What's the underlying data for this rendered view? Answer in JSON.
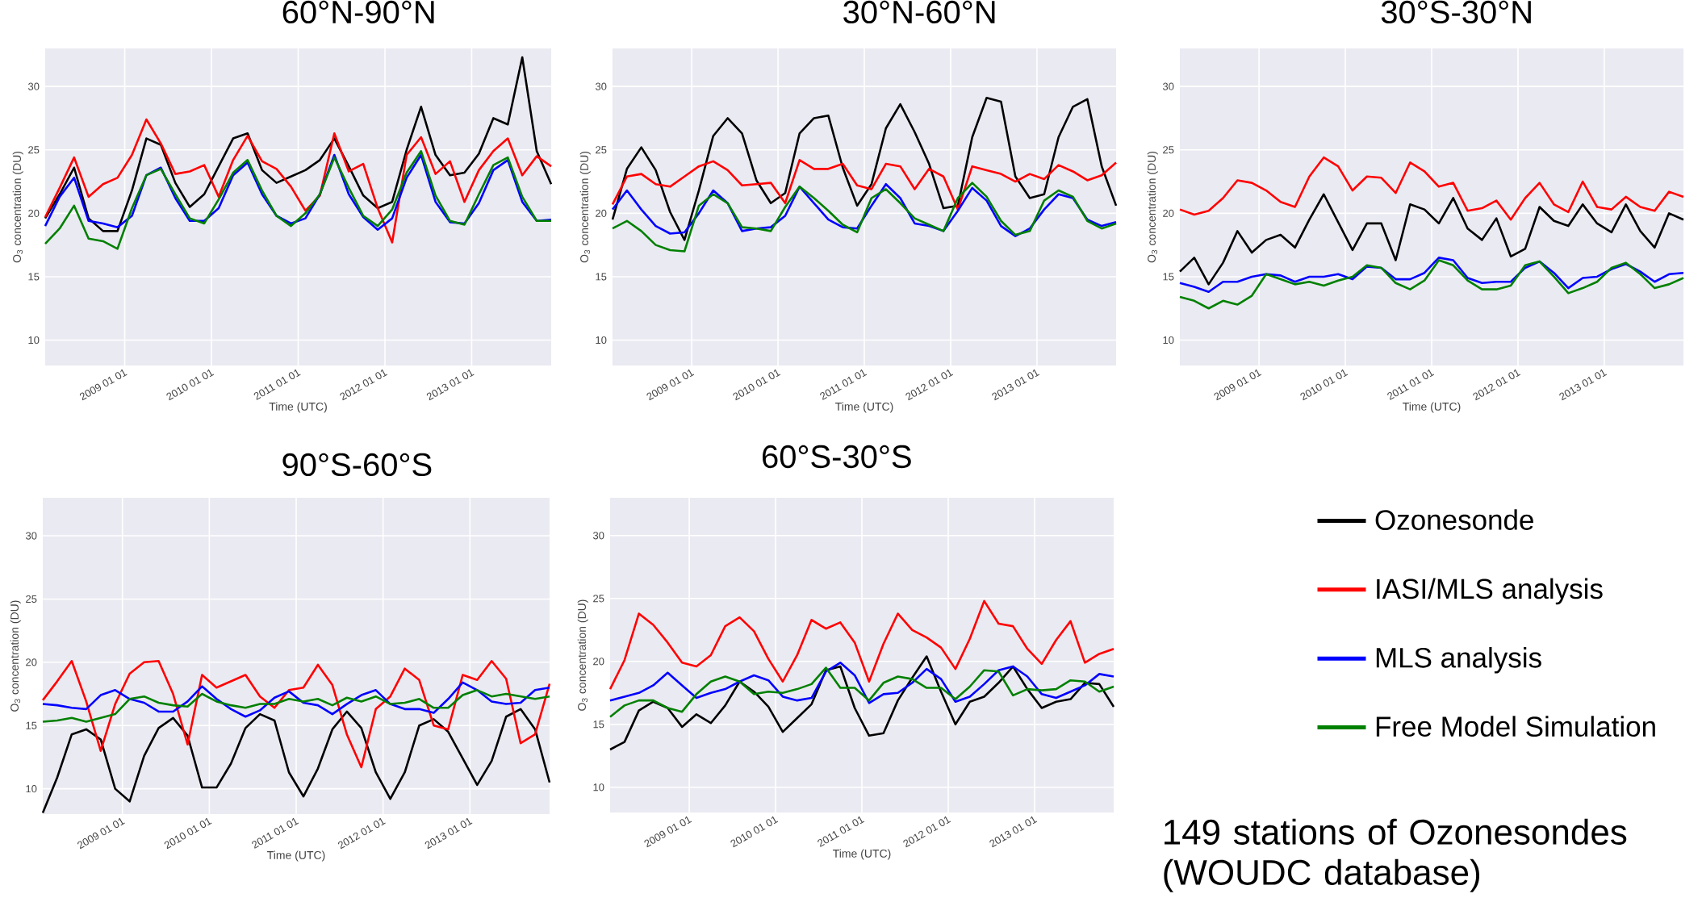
{
  "chart_data": [
    {
      "type": "line",
      "title": "60°N-90°N",
      "xlabel": "Time (UTC)",
      "ylabel": "O$_{3}$ concentration (DU)",
      "grid": true,
      "x": [
        "2008-02",
        "2008-04",
        "2008-06",
        "2008-08",
        "2008-10",
        "2008-12",
        "2009-02",
        "2009-04",
        "2009-06",
        "2009-08",
        "2009-10",
        "2009-12",
        "2010-02",
        "2010-04",
        "2010-06",
        "2010-08",
        "2010-10",
        "2010-12",
        "2011-02",
        "2011-04",
        "2011-06",
        "2011-08",
        "2011-10",
        "2011-12",
        "2012-02",
        "2012-04",
        "2012-06",
        "2012-08",
        "2012-10",
        "2012-12",
        "2013-02",
        "2013-04",
        "2013-06",
        "2013-08",
        "2013-10",
        "2013-12"
      ],
      "xlim": [
        "2008-02",
        "2013-12"
      ],
      "ylim": [
        8,
        33
      ],
      "yticks": [
        10,
        15,
        20,
        25,
        30
      ],
      "xticks": [
        {
          "value": "2009-01-01",
          "label": "2009 01 01"
        },
        {
          "value": "2010-01-01",
          "label": "2010 01 01"
        },
        {
          "value": "2011-01-01",
          "label": "2011 01 01"
        },
        {
          "value": "2012-01-01",
          "label": "2012 01 01"
        },
        {
          "value": "2013-01-01",
          "label": "2013 01 01"
        }
      ],
      "series": [
        {
          "color": "#000000",
          "values": [
            19.6,
            21.5,
            23.6,
            19.6,
            18.6,
            18.6,
            21.8,
            25.9,
            25.4,
            22.4,
            20.5,
            21.5,
            23.7,
            25.9,
            26.3,
            23.4,
            22.4,
            22.9,
            23.4,
            24.2,
            25.9,
            23.7,
            21.4,
            20.4,
            20.9,
            25.0,
            28.4,
            24.6,
            23.0,
            23.2,
            24.7,
            27.5,
            27.0,
            32.3,
            24.9,
            22.3
          ]
        },
        {
          "color": "#ff0000",
          "values": [
            19.7,
            22.0,
            24.4,
            21.3,
            22.3,
            22.8,
            24.6,
            27.4,
            25.5,
            23.1,
            23.3,
            23.8,
            21.3,
            24.2,
            26.1,
            24.1,
            23.5,
            22.1,
            20.2,
            21.4,
            26.3,
            23.3,
            23.9,
            20.4,
            17.7,
            24.6,
            26.0,
            23.1,
            24.1,
            20.9,
            23.4,
            24.9,
            25.9,
            23.0,
            24.5,
            23.7
          ]
        },
        {
          "color": "#0000ff",
          "values": [
            19.0,
            21.3,
            22.8,
            19.4,
            19.2,
            18.9,
            19.8,
            23.0,
            23.6,
            21.2,
            19.4,
            19.4,
            20.4,
            23.0,
            24.0,
            21.5,
            19.8,
            19.2,
            19.6,
            21.5,
            24.6,
            21.5,
            19.7,
            18.7,
            19.6,
            22.8,
            24.6,
            20.9,
            19.3,
            19.2,
            20.8,
            23.4,
            24.2,
            20.9,
            19.4,
            19.5
          ]
        },
        {
          "color": "#008000",
          "values": [
            17.6,
            18.8,
            20.6,
            18.0,
            17.8,
            17.2,
            20.4,
            23.0,
            23.5,
            21.5,
            19.6,
            19.2,
            21.1,
            23.2,
            24.2,
            21.8,
            19.8,
            19.0,
            20.0,
            21.5,
            24.4,
            22.0,
            19.8,
            19.0,
            20.3,
            23.2,
            24.9,
            21.4,
            19.4,
            19.1,
            21.5,
            23.8,
            24.4,
            21.3,
            19.4,
            19.4
          ]
        }
      ]
    },
    {
      "type": "line",
      "title": "30°N-60°N",
      "xlabel": "Time (UTC)",
      "ylabel": "O$_{3}$ concentration (DU)",
      "grid": true,
      "x": [
        "2008-02",
        "2008-04",
        "2008-06",
        "2008-08",
        "2008-10",
        "2008-12",
        "2009-02",
        "2009-04",
        "2009-06",
        "2009-08",
        "2009-10",
        "2009-12",
        "2010-02",
        "2010-04",
        "2010-06",
        "2010-08",
        "2010-10",
        "2010-12",
        "2011-02",
        "2011-04",
        "2011-06",
        "2011-08",
        "2011-10",
        "2011-12",
        "2012-02",
        "2012-04",
        "2012-06",
        "2012-08",
        "2012-10",
        "2012-12",
        "2013-02",
        "2013-04",
        "2013-06",
        "2013-08",
        "2013-10",
        "2013-12"
      ],
      "xlim": [
        "2008-02",
        "2013-12"
      ],
      "ylim": [
        8,
        33
      ],
      "yticks": [
        10,
        15,
        20,
        25,
        30
      ],
      "xticks": [
        {
          "value": "2009-01-01",
          "label": "2009 01 01"
        },
        {
          "value": "2010-01-01",
          "label": "2010 01 01"
        },
        {
          "value": "2011-01-01",
          "label": "2011 01 01"
        },
        {
          "value": "2012-01-01",
          "label": "2012 01 01"
        },
        {
          "value": "2013-01-01",
          "label": "2013 01 01"
        }
      ],
      "series": [
        {
          "color": "#000000",
          "values": [
            19.5,
            23.5,
            25.2,
            23.4,
            20.1,
            17.9,
            21.8,
            26.1,
            27.5,
            26.3,
            22.6,
            20.8,
            21.6,
            26.3,
            27.5,
            27.7,
            23.6,
            20.6,
            22.3,
            26.7,
            28.6,
            26.4,
            23.9,
            20.4,
            20.6,
            26.0,
            29.1,
            28.8,
            22.9,
            21.2,
            21.5,
            26.0,
            28.4,
            29.0,
            23.7,
            20.6
          ]
        },
        {
          "color": "#ff0000",
          "values": [
            20.7,
            22.9,
            23.1,
            22.3,
            22.1,
            22.9,
            23.7,
            24.1,
            23.4,
            22.2,
            22.3,
            22.4,
            20.8,
            24.2,
            23.5,
            23.5,
            23.9,
            22.2,
            21.9,
            23.9,
            23.7,
            21.9,
            23.5,
            22.9,
            20.3,
            23.7,
            23.4,
            23.1,
            22.5,
            23.1,
            22.7,
            23.8,
            23.3,
            22.6,
            23.0,
            24.0
          ]
        },
        {
          "color": "#0000ff",
          "values": [
            20.3,
            21.8,
            20.3,
            19.0,
            18.4,
            18.5,
            20.0,
            21.8,
            20.8,
            18.6,
            18.8,
            18.9,
            19.8,
            22.1,
            20.8,
            19.5,
            18.9,
            18.8,
            20.6,
            22.3,
            21.2,
            19.2,
            19.0,
            18.6,
            20.2,
            22.0,
            21.0,
            19.0,
            18.2,
            18.8,
            20.3,
            21.5,
            21.2,
            19.5,
            19.0,
            19.3
          ]
        },
        {
          "color": "#008000",
          "values": [
            18.8,
            19.4,
            18.6,
            17.5,
            17.1,
            17.0,
            20.6,
            21.5,
            20.8,
            18.9,
            18.8,
            18.6,
            20.5,
            22.1,
            21.2,
            20.2,
            19.1,
            18.5,
            21.2,
            21.9,
            20.8,
            19.6,
            19.1,
            18.6,
            21.2,
            22.4,
            21.3,
            19.4,
            18.3,
            18.6,
            21.0,
            21.8,
            21.3,
            19.4,
            18.8,
            19.2
          ]
        }
      ]
    },
    {
      "type": "line",
      "title": "30°S-30°N",
      "xlabel": "Time (UTC)",
      "ylabel": "O$_{3}$ concentration (DU)",
      "grid": true,
      "x": [
        "2008-02",
        "2008-04",
        "2008-06",
        "2008-08",
        "2008-10",
        "2008-12",
        "2009-02",
        "2009-04",
        "2009-06",
        "2009-08",
        "2009-10",
        "2009-12",
        "2010-02",
        "2010-04",
        "2010-06",
        "2010-08",
        "2010-10",
        "2010-12",
        "2011-02",
        "2011-04",
        "2011-06",
        "2011-08",
        "2011-10",
        "2011-12",
        "2012-02",
        "2012-04",
        "2012-06",
        "2012-08",
        "2012-10",
        "2012-12",
        "2013-02",
        "2013-04",
        "2013-06",
        "2013-08",
        "2013-10",
        "2013-12"
      ],
      "xlim": [
        "2008-02",
        "2013-12"
      ],
      "ylim": [
        8,
        33
      ],
      "yticks": [
        10,
        15,
        20,
        25,
        30
      ],
      "xticks": [
        {
          "value": "2009-01-01",
          "label": "2009 01 01"
        },
        {
          "value": "2010-01-01",
          "label": "2010 01 01"
        },
        {
          "value": "2011-01-01",
          "label": "2011 01 01"
        },
        {
          "value": "2012-01-01",
          "label": "2012 01 01"
        },
        {
          "value": "2013-01-01",
          "label": "2013 01 01"
        }
      ],
      "series": [
        {
          "color": "#000000",
          "values": [
            15.4,
            16.5,
            14.4,
            16.1,
            18.6,
            16.9,
            17.9,
            18.3,
            17.3,
            19.5,
            21.5,
            19.3,
            17.1,
            19.2,
            19.2,
            16.3,
            20.7,
            20.3,
            19.2,
            21.2,
            18.8,
            17.9,
            19.6,
            16.6,
            17.2,
            20.5,
            19.4,
            19.0,
            20.7,
            19.2,
            18.5,
            20.7,
            18.6,
            17.3,
            20.0,
            19.5
          ]
        },
        {
          "color": "#ff0000",
          "values": [
            20.3,
            19.9,
            20.2,
            21.2,
            22.6,
            22.4,
            21.8,
            20.9,
            20.5,
            22.9,
            24.4,
            23.7,
            21.8,
            22.9,
            22.8,
            21.6,
            24.0,
            23.3,
            22.1,
            22.4,
            20.2,
            20.4,
            21.0,
            19.5,
            21.2,
            22.4,
            20.7,
            20.1,
            22.5,
            20.5,
            20.3,
            21.3,
            20.5,
            20.2,
            21.7,
            21.3
          ]
        },
        {
          "color": "#0000ff",
          "values": [
            14.5,
            14.2,
            13.8,
            14.6,
            14.6,
            15.0,
            15.2,
            15.1,
            14.6,
            15.0,
            15.0,
            15.2,
            14.8,
            15.8,
            15.7,
            14.8,
            14.8,
            15.3,
            16.5,
            16.3,
            14.9,
            14.5,
            14.6,
            14.6,
            15.7,
            16.2,
            15.3,
            14.1,
            14.9,
            15.0,
            15.6,
            16.0,
            15.4,
            14.6,
            15.2,
            15.3
          ]
        },
        {
          "color": "#008000",
          "values": [
            13.4,
            13.1,
            12.5,
            13.1,
            12.8,
            13.5,
            15.2,
            14.8,
            14.4,
            14.6,
            14.3,
            14.7,
            15.0,
            15.9,
            15.7,
            14.5,
            14.0,
            14.7,
            16.3,
            15.9,
            14.7,
            14.0,
            14.0,
            14.3,
            15.9,
            16.2,
            15.0,
            13.7,
            14.1,
            14.6,
            15.7,
            16.1,
            15.2,
            14.1,
            14.4,
            14.9
          ]
        }
      ]
    },
    {
      "type": "line",
      "title": "90°S-60°S",
      "xlabel": "Time (UTC)",
      "ylabel": "O$_{3}$ concentration (DU)",
      "grid": true,
      "x": [
        "2008-02",
        "2008-04",
        "2008-06",
        "2008-08",
        "2008-10",
        "2008-12",
        "2009-02",
        "2009-04",
        "2009-06",
        "2009-08",
        "2009-10",
        "2009-12",
        "2010-02",
        "2010-04",
        "2010-06",
        "2010-08",
        "2010-10",
        "2010-12",
        "2011-02",
        "2011-04",
        "2011-06",
        "2011-08",
        "2011-10",
        "2011-12",
        "2012-02",
        "2012-04",
        "2012-06",
        "2012-08",
        "2012-10",
        "2012-12",
        "2013-02",
        "2013-04",
        "2013-06",
        "2013-08",
        "2013-10",
        "2013-12"
      ],
      "xlim": [
        "2008-02",
        "2013-12"
      ],
      "ylim": [
        8,
        33
      ],
      "yticks": [
        10,
        15,
        20,
        25,
        30
      ],
      "xticks": [
        {
          "value": "2009-01-01",
          "label": "2009 01 01"
        },
        {
          "value": "2010-01-01",
          "label": "2010 01 01"
        },
        {
          "value": "2011-01-01",
          "label": "2011 01 01"
        },
        {
          "value": "2012-01-01",
          "label": "2012 01 01"
        },
        {
          "value": "2013-01-01",
          "label": "2013 01 01"
        }
      ],
      "series": [
        {
          "color": "#000000",
          "values": [
            8.1,
            10.9,
            14.3,
            14.7,
            13.9,
            10.0,
            9.0,
            12.6,
            14.8,
            15.6,
            14.2,
            10.1,
            10.1,
            12.0,
            14.8,
            15.9,
            15.4,
            11.3,
            9.4,
            11.6,
            14.7,
            16.1,
            14.8,
            11.3,
            9.2,
            11.3,
            15.0,
            15.5,
            14.5,
            12.4,
            10.3,
            12.2,
            15.7,
            16.3,
            14.7,
            10.5
          ]
        },
        {
          "color": "#ff0000",
          "values": [
            17.0,
            18.5,
            20.1,
            16.9,
            13.0,
            16.7,
            19.1,
            20.0,
            20.1,
            17.5,
            13.5,
            19.0,
            18.0,
            18.5,
            19.0,
            17.3,
            16.4,
            17.8,
            18.0,
            19.8,
            18.2,
            14.3,
            11.7,
            16.3,
            17.3,
            19.5,
            18.6,
            15.0,
            14.7,
            19.0,
            18.6,
            20.1,
            18.7,
            13.6,
            14.3,
            18.3
          ]
        },
        {
          "color": "#0000ff",
          "values": [
            16.7,
            16.6,
            16.4,
            16.3,
            17.4,
            17.8,
            17.1,
            16.8,
            16.1,
            16.1,
            16.9,
            18.1,
            17.1,
            16.3,
            15.7,
            16.2,
            17.2,
            17.7,
            16.8,
            16.6,
            15.9,
            16.7,
            17.4,
            17.8,
            16.7,
            16.3,
            16.3,
            16.0,
            17.1,
            18.4,
            17.8,
            16.9,
            16.7,
            16.8,
            17.8,
            18.0
          ]
        },
        {
          "color": "#008000",
          "values": [
            15.3,
            15.4,
            15.6,
            15.3,
            15.6,
            15.9,
            17.1,
            17.3,
            16.8,
            16.6,
            16.5,
            17.5,
            16.9,
            16.6,
            16.4,
            16.7,
            16.7,
            17.1,
            16.9,
            17.1,
            16.6,
            17.2,
            16.9,
            17.3,
            16.7,
            16.8,
            17.1,
            16.4,
            16.4,
            17.4,
            17.8,
            17.3,
            17.5,
            17.3,
            17.1,
            17.3
          ]
        }
      ]
    },
    {
      "type": "line",
      "title": "60°S-30°S",
      "xlabel": "Time (UTC)",
      "ylabel": "O$_{3}$ concentration (DU)",
      "grid": true,
      "legend": "right",
      "annotations": [
        "149 stations of Ozonesondes (WOUDC database)"
      ],
      "x": [
        "2008-02",
        "2008-04",
        "2008-06",
        "2008-08",
        "2008-10",
        "2008-12",
        "2009-02",
        "2009-04",
        "2009-06",
        "2009-08",
        "2009-10",
        "2009-12",
        "2010-02",
        "2010-04",
        "2010-06",
        "2010-08",
        "2010-10",
        "2010-12",
        "2011-02",
        "2011-04",
        "2011-06",
        "2011-08",
        "2011-10",
        "2011-12",
        "2012-02",
        "2012-04",
        "2012-06",
        "2012-08",
        "2012-10",
        "2012-12",
        "2013-02",
        "2013-04",
        "2013-06",
        "2013-08",
        "2013-10",
        "2013-12"
      ],
      "xlim": [
        "2008-02",
        "2013-12"
      ],
      "ylim": [
        8,
        33
      ],
      "yticks": [
        10,
        15,
        20,
        25,
        30
      ],
      "xticks": [
        {
          "value": "2009-01-01",
          "label": "2009 01 01"
        },
        {
          "value": "2010-01-01",
          "label": "2010 01 01"
        },
        {
          "value": "2011-01-01",
          "label": "2011 01 01"
        },
        {
          "value": "2012-01-01",
          "label": "2012 01 01"
        },
        {
          "value": "2013-01-01",
          "label": "2013 01 01"
        }
      ],
      "series": [
        {
          "name": "Ozonesonde",
          "color": "#000000",
          "values": [
            13.0,
            13.6,
            16.1,
            16.8,
            16.3,
            14.8,
            15.8,
            15.1,
            16.5,
            18.4,
            17.6,
            16.4,
            14.4,
            15.5,
            16.6,
            19.3,
            19.6,
            16.3,
            14.1,
            14.3,
            16.9,
            18.7,
            20.4,
            17.6,
            15.0,
            16.8,
            17.2,
            18.3,
            19.6,
            17.8,
            16.3,
            16.8,
            17.0,
            18.3,
            18.2,
            16.4
          ]
        },
        {
          "name": "IASI/MLS analysis",
          "color": "#ff0000",
          "values": [
            17.8,
            20.1,
            23.8,
            22.9,
            21.5,
            19.9,
            19.6,
            20.5,
            22.8,
            23.5,
            22.4,
            20.2,
            18.4,
            20.5,
            23.3,
            22.6,
            23.1,
            21.5,
            18.4,
            21.4,
            23.8,
            22.5,
            21.9,
            21.1,
            19.4,
            21.8,
            24.8,
            23.0,
            22.8,
            21.0,
            19.8,
            21.7,
            23.2,
            19.9,
            20.6,
            21.0
          ]
        },
        {
          "name": "MLS analysis",
          "color": "#0000ff",
          "values": [
            16.9,
            17.2,
            17.5,
            18.1,
            19.1,
            18.1,
            17.1,
            17.5,
            17.8,
            18.4,
            18.9,
            18.5,
            17.2,
            16.9,
            17.1,
            19.2,
            19.9,
            18.9,
            16.7,
            17.4,
            17.5,
            18.3,
            19.4,
            18.6,
            16.8,
            17.2,
            18.2,
            19.3,
            19.6,
            18.8,
            17.4,
            17.1,
            17.6,
            18.1,
            19.0,
            18.8
          ]
        },
        {
          "name": "Free Model Simulation",
          "color": "#008000",
          "values": [
            15.6,
            16.5,
            16.9,
            16.9,
            16.3,
            16.0,
            17.4,
            18.4,
            18.8,
            18.4,
            17.4,
            17.6,
            17.5,
            17.8,
            18.2,
            19.5,
            17.9,
            17.9,
            16.9,
            18.3,
            18.8,
            18.6,
            17.9,
            17.9,
            17.0,
            18.0,
            19.3,
            19.2,
            17.3,
            17.8,
            17.7,
            17.8,
            18.5,
            18.4,
            17.6,
            18.0
          ]
        }
      ]
    }
  ]
}
